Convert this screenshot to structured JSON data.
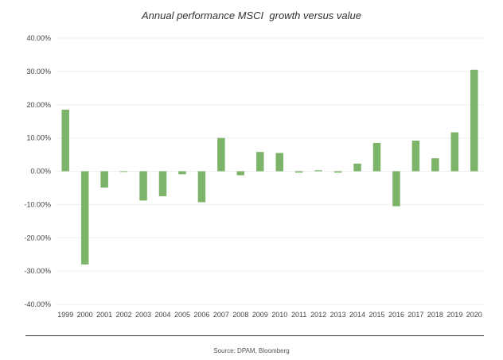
{
  "colors": {
    "bar": "#7cb46a",
    "gridline": "#eeeeee",
    "text": "#444444"
  },
  "source": "Source: DPAM, Bloomberg",
  "chart_data": {
    "type": "bar",
    "title": "Annual performance MSCI  growth versus value",
    "xlabel": "",
    "ylabel": "",
    "ylim": [
      -40,
      40
    ],
    "yticks": [
      40,
      30,
      20,
      10,
      0,
      -10,
      -20,
      -30,
      -40
    ],
    "ytick_labels": [
      "40.00%",
      "30.00%",
      "20.00%",
      "10.00%",
      "0.00%",
      "-10.00%",
      "-20.00%",
      "-30.00%",
      "-40.00%"
    ],
    "grid": true,
    "categories": [
      "1999",
      "2000",
      "2001",
      "2002",
      "2003",
      "2004",
      "2005",
      "2006",
      "2007",
      "2008",
      "2009",
      "2010",
      "2011",
      "2012",
      "2013",
      "2014",
      "2015",
      "2016",
      "2017",
      "2018",
      "2019",
      "2020"
    ],
    "values": [
      18.5,
      -28.0,
      -4.9,
      -0.2,
      -8.8,
      -7.5,
      -0.9,
      -9.3,
      10.0,
      -1.2,
      5.8,
      5.5,
      -0.4,
      0.3,
      -0.4,
      2.3,
      8.5,
      -10.5,
      9.2,
      3.9,
      11.7,
      30.5
    ]
  }
}
